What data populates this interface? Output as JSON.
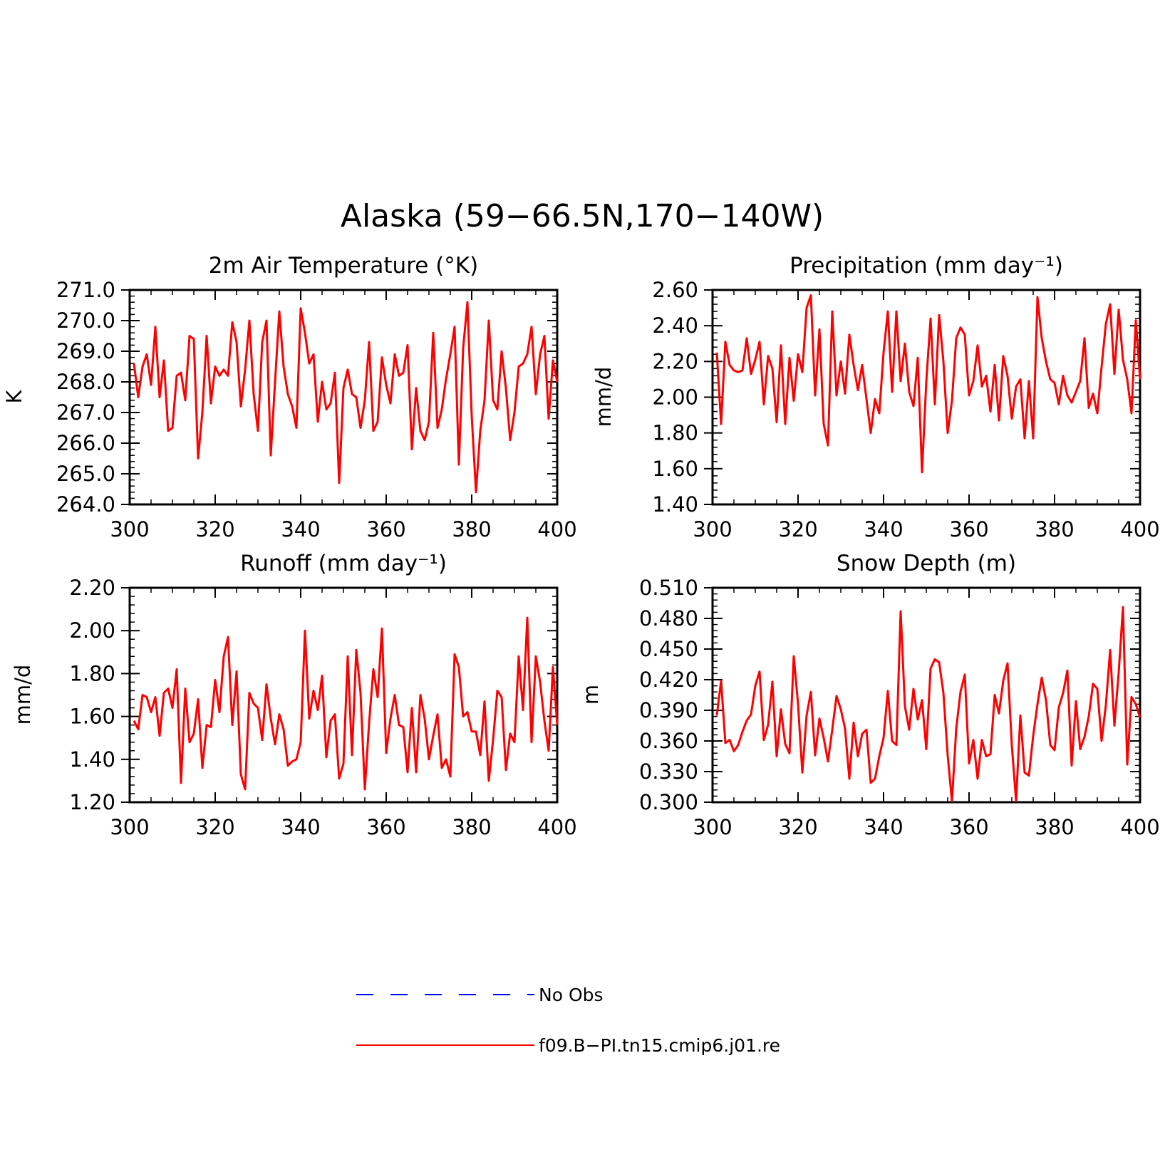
{
  "figure": {
    "title": "Alaska (59−66.5N,170−140W)"
  },
  "legend": {
    "entries": [
      {
        "label": "No Obs",
        "color": "#0000ff",
        "style": "dashed"
      },
      {
        "label": "f09.B−PI.tn15.cmip6.j01.re",
        "color": "#ff0000",
        "style": "solid"
      }
    ]
  },
  "chart_data": [
    {
      "type": "line",
      "title": "2m Air Temperature (°K)",
      "ylabel": "K",
      "xlim": [
        300,
        400
      ],
      "ylim": [
        264.0,
        271.0
      ],
      "xticks": [
        "300",
        "320",
        "340",
        "360",
        "380",
        "400"
      ],
      "yticks": [
        "264.0",
        "265.0",
        "266.0",
        "267.0",
        "268.0",
        "269.0",
        "270.0",
        "271.0"
      ],
      "grid": false,
      "color": "#ff0000",
      "x_start": 301,
      "x_step": 1,
      "values": [
        268.6,
        267.5,
        268.5,
        268.9,
        267.9,
        269.8,
        267.5,
        268.7,
        266.4,
        266.5,
        268.2,
        268.3,
        267.4,
        269.5,
        269.4,
        265.5,
        267.0,
        269.5,
        267.3,
        268.5,
        268.2,
        268.4,
        268.2,
        269.95,
        269.3,
        267.2,
        268.4,
        270.0,
        267.6,
        266.4,
        269.3,
        270.0,
        265.6,
        268.0,
        270.3,
        268.5,
        267.6,
        267.2,
        266.5,
        270.4,
        269.6,
        268.6,
        268.9,
        266.7,
        268.0,
        267.1,
        267.3,
        268.3,
        264.7,
        267.8,
        268.4,
        267.6,
        267.5,
        266.5,
        267.4,
        269.3,
        266.4,
        266.7,
        268.8,
        267.9,
        267.3,
        268.9,
        268.2,
        268.3,
        269.2,
        265.8,
        267.8,
        266.4,
        266.1,
        266.7,
        269.6,
        266.5,
        267.1,
        268.1,
        268.9,
        269.8,
        265.3,
        269.1,
        270.6,
        266.9,
        264.4,
        266.4,
        267.4,
        270.0,
        267.4,
        267.1,
        269.0,
        267.8,
        266.1,
        267.0,
        268.5,
        268.6,
        268.9,
        269.8,
        267.6,
        268.9,
        269.5,
        266.8,
        268.7,
        268.0
      ]
    },
    {
      "type": "line",
      "title": "Precipitation (mm day⁻¹)",
      "ylabel": "mm/d",
      "xlim": [
        300,
        400
      ],
      "ylim": [
        1.4,
        2.6
      ],
      "xticks": [
        "300",
        "320",
        "340",
        "360",
        "380",
        "400"
      ],
      "yticks": [
        "1.40",
        "1.60",
        "1.80",
        "2.00",
        "2.20",
        "2.40",
        "2.60"
      ],
      "grid": false,
      "color": "#ff0000",
      "x_start": 301,
      "x_step": 1,
      "values": [
        2.25,
        1.85,
        2.31,
        2.18,
        2.15,
        2.14,
        2.15,
        2.33,
        2.13,
        2.21,
        2.31,
        1.96,
        2.23,
        2.16,
        1.86,
        2.29,
        1.85,
        2.22,
        1.98,
        2.24,
        2.14,
        2.5,
        2.57,
        2.01,
        2.38,
        1.85,
        1.73,
        2.48,
        2.01,
        2.2,
        2.02,
        2.35,
        2.18,
        2.04,
        2.18,
        1.99,
        1.8,
        1.99,
        1.91,
        2.25,
        2.48,
        2.03,
        2.48,
        2.09,
        2.3,
        2.03,
        1.95,
        2.22,
        1.58,
        2.09,
        2.44,
        1.96,
        2.46,
        2.2,
        1.8,
        1.98,
        2.33,
        2.39,
        2.35,
        2.01,
        2.09,
        2.29,
        2.06,
        2.12,
        1.92,
        2.18,
        1.87,
        2.23,
        2.12,
        1.88,
        2.06,
        2.1,
        1.77,
        2.09,
        1.77,
        2.56,
        2.33,
        2.2,
        2.1,
        2.08,
        1.96,
        2.12,
        2.01,
        1.97,
        2.03,
        2.09,
        2.33,
        1.94,
        2.02,
        1.91,
        2.17,
        2.41,
        2.52,
        2.13,
        2.49,
        2.21,
        2.1,
        1.91,
        2.43,
        2.1
      ]
    },
    {
      "type": "line",
      "title": "Runoff (mm day⁻¹)",
      "ylabel": "mm/d",
      "xlim": [
        300,
        400
      ],
      "ylim": [
        1.2,
        2.2
      ],
      "xticks": [
        "300",
        "320",
        "340",
        "360",
        "380",
        "400"
      ],
      "yticks": [
        "1.20",
        "1.40",
        "1.60",
        "1.80",
        "2.00",
        "2.20"
      ],
      "grid": false,
      "color": "#ff0000",
      "x_start": 301,
      "x_step": 1,
      "values": [
        1.58,
        1.54,
        1.7,
        1.69,
        1.62,
        1.69,
        1.51,
        1.71,
        1.73,
        1.64,
        1.82,
        1.29,
        1.73,
        1.48,
        1.52,
        1.68,
        1.36,
        1.56,
        1.55,
        1.77,
        1.62,
        1.88,
        1.97,
        1.56,
        1.81,
        1.33,
        1.26,
        1.71,
        1.66,
        1.64,
        1.49,
        1.75,
        1.59,
        1.47,
        1.61,
        1.54,
        1.37,
        1.39,
        1.4,
        1.48,
        2.0,
        1.59,
        1.72,
        1.63,
        1.79,
        1.41,
        1.58,
        1.61,
        1.31,
        1.38,
        1.88,
        1.42,
        1.91,
        1.71,
        1.26,
        1.57,
        1.82,
        1.69,
        2.01,
        1.43,
        1.59,
        1.7,
        1.56,
        1.55,
        1.34,
        1.64,
        1.34,
        1.7,
        1.59,
        1.4,
        1.51,
        1.61,
        1.36,
        1.4,
        1.32,
        1.89,
        1.83,
        1.6,
        1.62,
        1.53,
        1.53,
        1.42,
        1.67,
        1.3,
        1.49,
        1.72,
        1.69,
        1.35,
        1.52,
        1.48,
        1.88,
        1.63,
        2.06,
        1.48,
        1.88,
        1.76,
        1.58,
        1.44,
        1.83,
        1.56
      ]
    },
    {
      "type": "line",
      "title": "Snow Depth (m)",
      "ylabel": "m",
      "xlim": [
        300,
        400
      ],
      "ylim": [
        0.3,
        0.51
      ],
      "xticks": [
        "300",
        "320",
        "340",
        "360",
        "380",
        "400"
      ],
      "yticks": [
        "0.300",
        "0.330",
        "0.360",
        "0.390",
        "0.420",
        "0.450",
        "0.480",
        "0.510"
      ],
      "grid": false,
      "color": "#ff0000",
      "x_start": 301,
      "x_step": 1,
      "values": [
        0.385,
        0.419,
        0.358,
        0.361,
        0.35,
        0.356,
        0.369,
        0.38,
        0.386,
        0.414,
        0.428,
        0.361,
        0.376,
        0.418,
        0.345,
        0.391,
        0.357,
        0.348,
        0.443,
        0.396,
        0.329,
        0.385,
        0.408,
        0.346,
        0.382,
        0.363,
        0.34,
        0.371,
        0.404,
        0.391,
        0.372,
        0.323,
        0.378,
        0.345,
        0.367,
        0.371,
        0.319,
        0.323,
        0.345,
        0.363,
        0.409,
        0.36,
        0.356,
        0.487,
        0.394,
        0.371,
        0.411,
        0.381,
        0.4,
        0.352,
        0.431,
        0.44,
        0.437,
        0.407,
        0.346,
        0.301,
        0.372,
        0.408,
        0.425,
        0.338,
        0.361,
        0.323,
        0.361,
        0.345,
        0.347,
        0.405,
        0.387,
        0.419,
        0.436,
        0.356,
        0.301,
        0.385,
        0.329,
        0.326,
        0.365,
        0.396,
        0.422,
        0.4,
        0.356,
        0.351,
        0.393,
        0.407,
        0.429,
        0.336,
        0.399,
        0.352,
        0.364,
        0.384,
        0.416,
        0.411,
        0.36,
        0.395,
        0.449,
        0.375,
        0.427,
        0.491,
        0.337,
        0.403,
        0.396,
        0.383
      ]
    }
  ]
}
